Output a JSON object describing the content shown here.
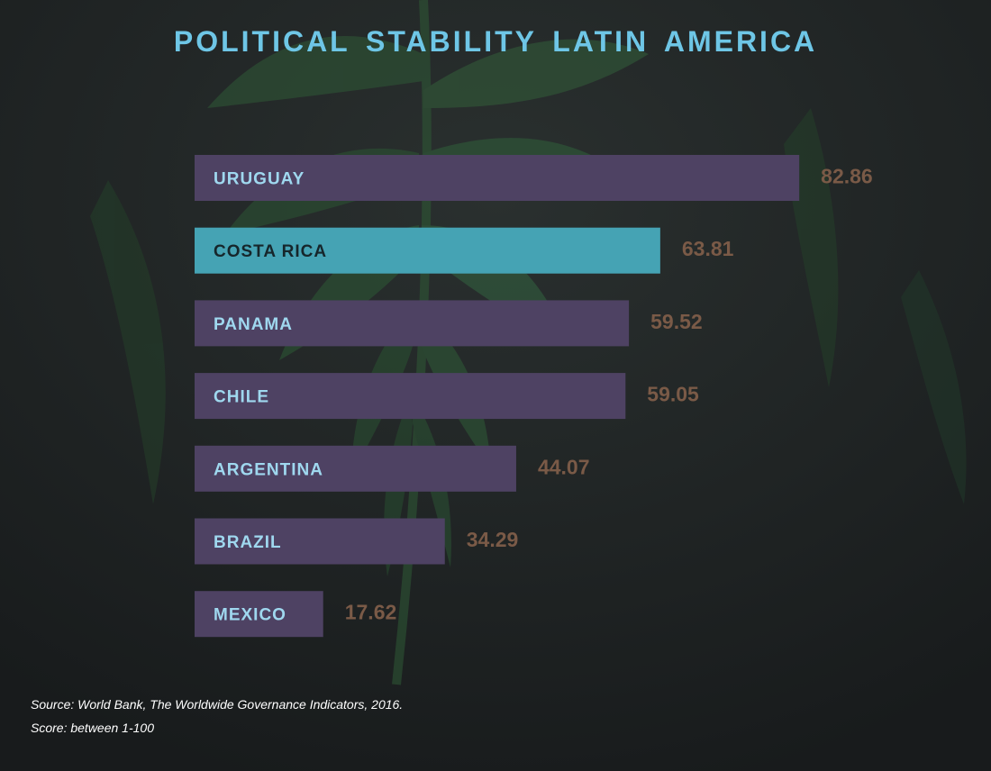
{
  "chart_data": {
    "type": "bar",
    "orientation": "horizontal",
    "title": "POLITICAL STABILITY LATIN AMERICA",
    "categories": [
      "URUGUAY",
      "COSTA RICA",
      "PANAMA",
      "CHILE",
      "ARGENTINA",
      "BRAZIL",
      "MEXICO"
    ],
    "values": [
      82.86,
      63.81,
      59.52,
      59.05,
      44.07,
      34.29,
      17.62
    ],
    "value_labels": [
      "82.86",
      "63.81",
      "59.52",
      "59.05",
      "44.07",
      "34.29",
      "17.62"
    ],
    "xlim": [
      0,
      100
    ],
    "highlight_category": "COSTA RICA",
    "grid": false,
    "legend": "none"
  },
  "notes": {
    "source": "Source: World Bank, The Worldwide Governance Indicators, 2016.",
    "score_range": "Score: between 1-100"
  },
  "colors": {
    "title": "#6ec6e6",
    "bar_default": "#4e4263",
    "bar_highlight": "#45a3b4",
    "label_default": "#9fd8ef",
    "label_highlight": "#16262b",
    "value_label": "#7a5a47",
    "background": "#1d2122",
    "foliage": "#2f5a36"
  }
}
